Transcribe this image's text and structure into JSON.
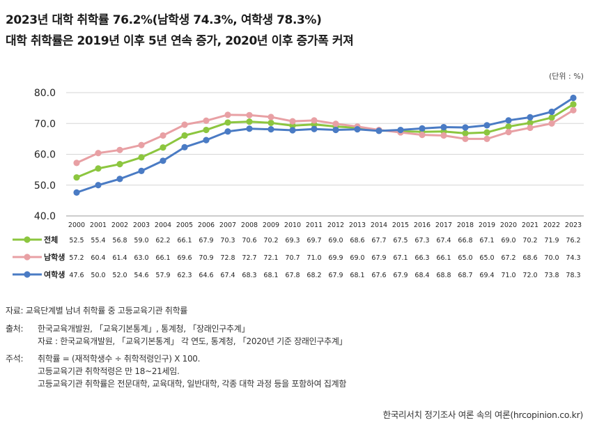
{
  "header": {
    "title_line1": "2023년 대학 취학률 76.2%(남학생 74.3%, 여학생 78.3%)",
    "title_line2": "대학 취학률은 2019년 이후 5년 연속 증가, 2020년 이후 증가폭 커져"
  },
  "unit": "(단위 : %)",
  "chart_data": {
    "type": "line",
    "x": [
      "2000",
      "2001",
      "2002",
      "2003",
      "2004",
      "2005",
      "2006",
      "2007",
      "2008",
      "2009",
      "2010",
      "2011",
      "2012",
      "2013",
      "2014",
      "2015",
      "2016",
      "2017",
      "2018",
      "2019",
      "2020",
      "2021",
      "2022",
      "2023"
    ],
    "ylim": [
      40,
      80
    ],
    "yticks": [
      "40.0",
      "50.0",
      "60.0",
      "70.0",
      "80.0"
    ],
    "grid": true,
    "series": [
      {
        "name": "전체",
        "color": "#8cc63f",
        "values": [
          52.5,
          55.4,
          56.8,
          59.0,
          62.2,
          66.1,
          67.9,
          70.3,
          70.6,
          70.2,
          69.3,
          69.7,
          69.0,
          68.6,
          67.7,
          67.5,
          67.3,
          67.4,
          66.8,
          67.1,
          69.0,
          70.2,
          71.9,
          76.2
        ],
        "labels": [
          "52.5",
          "55.4",
          "56.8",
          "59.0",
          "62.2",
          "66.1",
          "67.9",
          "70.3",
          "70.6",
          "70.2",
          "69.3",
          "69.7",
          "69.0",
          "68.6",
          "67.7",
          "67.5",
          "67.3",
          "67.4",
          "66.8",
          "67.1",
          "69.0",
          "70.2",
          "71.9",
          "76.2"
        ]
      },
      {
        "name": "남학생",
        "color": "#e8a0a4",
        "values": [
          57.2,
          60.4,
          61.4,
          63.0,
          66.1,
          69.6,
          70.9,
          72.8,
          72.7,
          72.1,
          70.7,
          71.0,
          69.9,
          69.0,
          67.9,
          67.1,
          66.3,
          66.1,
          65.0,
          65.0,
          67.2,
          68.6,
          70.0,
          74.3
        ],
        "labels": [
          "57.2",
          "60.4",
          "61.4",
          "63.0",
          "66.1",
          "69.6",
          "70.9",
          "72.8",
          "72.7",
          "72.1",
          "70.7",
          "71.0",
          "69.9",
          "69.0",
          "67.9",
          "67.1",
          "66.3",
          "66.1",
          "65.0",
          "65.0",
          "67.2",
          "68.6",
          "70.0",
          "74.3"
        ]
      },
      {
        "name": "여학생",
        "color": "#4a7bc4",
        "values": [
          47.6,
          50.0,
          52.0,
          54.6,
          57.9,
          62.3,
          64.6,
          67.4,
          68.3,
          68.1,
          67.8,
          68.2,
          67.9,
          68.1,
          67.6,
          67.9,
          68.4,
          68.8,
          68.7,
          69.4,
          71.0,
          72.0,
          73.8,
          78.3
        ],
        "labels": [
          "47.6",
          "50.0",
          "52.0",
          "54.6",
          "57.9",
          "62.3",
          "64.6",
          "67.4",
          "68.3",
          "68.1",
          "67.8",
          "68.2",
          "67.9",
          "68.1",
          "67.6",
          "67.9",
          "68.4",
          "68.8",
          "68.7",
          "69.4",
          "71.0",
          "72.0",
          "73.8",
          "78.3"
        ]
      }
    ]
  },
  "footer": {
    "source_data": "자료: 교육단계별 남녀 취학률 중 고등교육기관 취학률",
    "source_label": "출처:",
    "source_line1": "한국교육개발원, 「교육기본통계」, 통계청, 「장래인구추계」",
    "source_line2": "자료 : 한국교육개발원, 「교육기본통계」 각 연도, 통계청, 「2020년 기준 장래인구추계」",
    "note_label": "주석:",
    "note_line1": "취학률 = (재적학생수 ÷ 취학적령인구) X 100.",
    "note_line2": "고등교육기관 취학적령은 만 18~21세임.",
    "note_line3": "고등교육기관 취학률은 전문대학, 교육대학, 일반대학, 각종 대학 과정 등을 포함하여 집계함",
    "credit": "한국리서치 정기조사 여론 속의 여론(hrcopinion.co.kr)"
  }
}
